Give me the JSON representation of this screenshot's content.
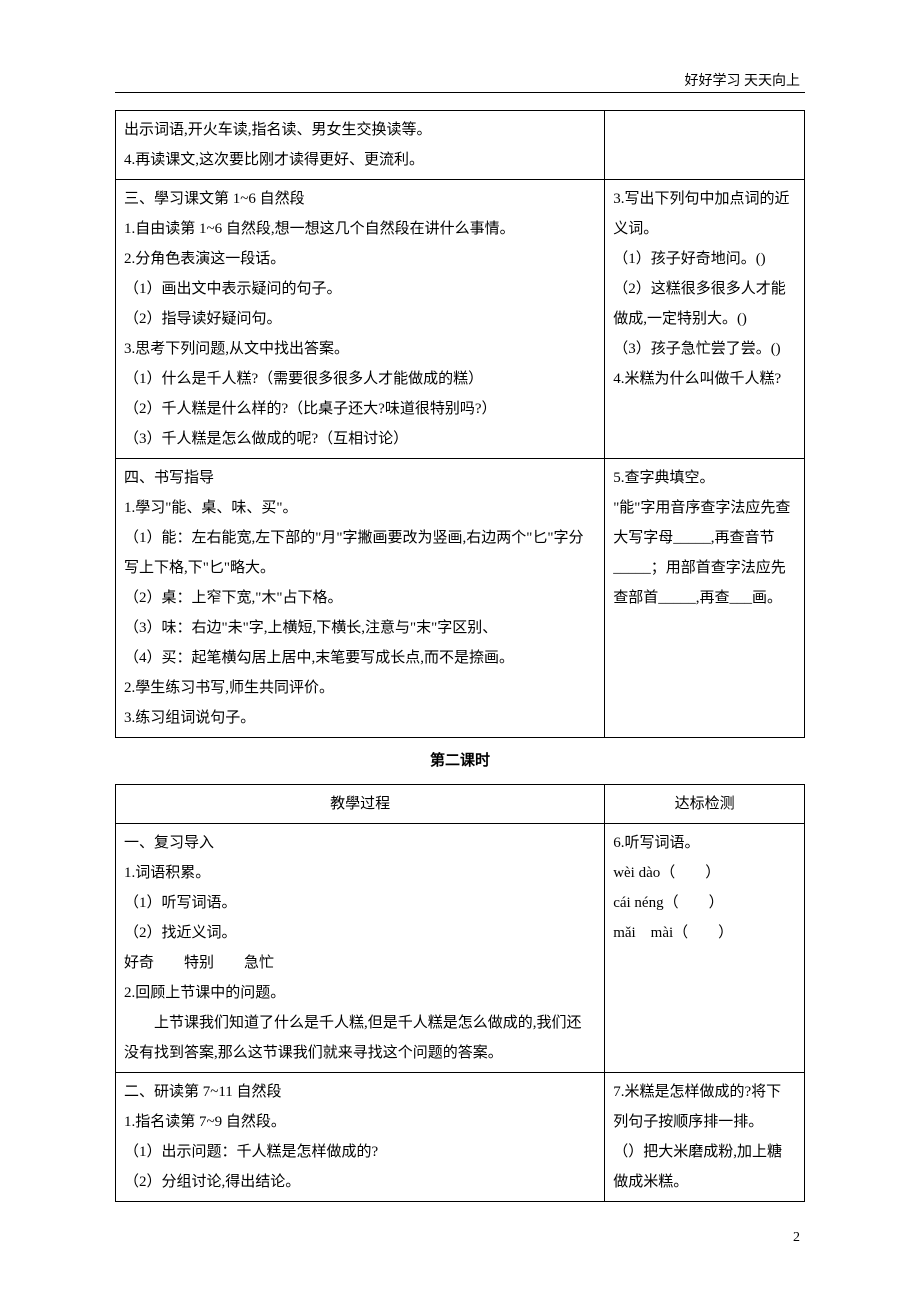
{
  "header": "好好学习 天天向上",
  "page_number": "2",
  "table1": {
    "rows": [
      {
        "left": [
          "出示词语,开火车读,指名读、男女生交换读等。",
          "4.再读课文,这次要比刚才读得更好、更流利。"
        ],
        "right": []
      },
      {
        "left": [
          "三、學习课文第 1~6 自然段",
          "1.自由读第 1~6 自然段,想一想这几个自然段在讲什么事情。",
          "2.分角色表演这一段话。",
          "（1）画出文中表示疑问的句子。",
          "（2）指导读好疑问句。",
          "3.思考下列问题,从文中找出答案。",
          "（1）什么是千人糕?（需要很多很多人才能做成的糕）",
          "（2）千人糕是什么样的?（比桌子还大?味道很特别吗?）",
          "（3）千人糕是怎么做成的呢?（互相讨论）"
        ],
        "right": [
          "3.写出下列句中加点词的近义词。",
          "（1）孩子好奇地问。()",
          "（2）这糕很多很多人才能做成,一定特别大。()",
          "（3）孩子急忙尝了尝。()",
          "4.米糕为什么叫做千人糕?"
        ]
      },
      {
        "left": [
          "四、书写指导",
          "1.學习\"能、桌、味、买\"。",
          "（1）能：左右能宽,左下部的\"月\"字撇画要改为竖画,右边两个\"匕\"字分写上下格,下\"匕\"略大。",
          "（2）桌：上窄下宽,\"木\"占下格。",
          "（3）味：右边\"未\"字,上横短,下横长,注意与\"末\"字区别、",
          "（4）买：起笔横勾居上居中,末笔要写成长点,而不是捺画。",
          "2.學生练习书写,师生共同评价。",
          "3.练习组词说句子。"
        ],
        "right": [
          "5.查字典填空。",
          "\"能\"字用音序查字法应先查大写字母_____,再查音节_____；用部首查字法应先查部首_____,再查___画。"
        ]
      }
    ]
  },
  "section2_title": "第二课时",
  "table2": {
    "header_left": "教學过程",
    "header_right": "达标检测",
    "rows": [
      {
        "left": [
          "一、复习导入",
          "1.词语积累。",
          "（1）听写词语。",
          "（2）找近义词。",
          "好奇　　特别　　急忙",
          "2.回顾上节课中的问题。",
          "　　上节课我们知道了什么是千人糕,但是千人糕是怎么做成的,我们还没有找到答案,那么这节课我们就来寻找这个问题的答案。"
        ],
        "right": [
          "6.听写词语。",
          "wèi dào（　　）",
          "cái néng（　　）",
          "mǎi　mài（　　）"
        ]
      },
      {
        "left": [
          "二、研读第 7~11 自然段",
          "1.指名读第 7~9 自然段。",
          "（1）出示问题：千人糕是怎样做成的?",
          "（2）分组讨论,得出结论。"
        ],
        "right": [
          "7.米糕是怎样做成的?将下列句子按顺序排一排。",
          "（）把大米磨成粉,加上糖做成米糕。"
        ]
      }
    ]
  }
}
